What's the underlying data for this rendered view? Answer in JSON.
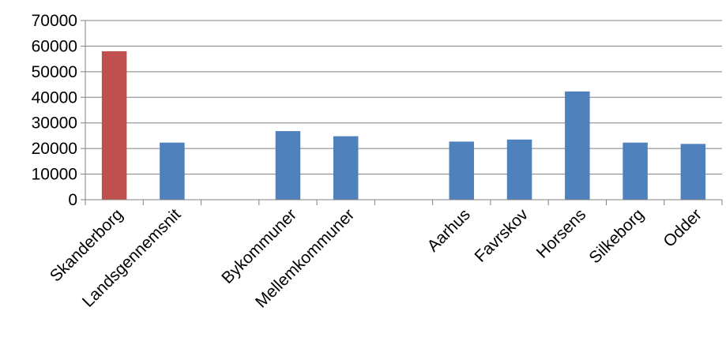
{
  "chart_data": {
    "type": "bar",
    "title": "",
    "xlabel": "",
    "ylabel": "",
    "ylim": [
      0,
      70000
    ],
    "yticks": [
      0,
      10000,
      20000,
      30000,
      40000,
      50000,
      60000,
      70000
    ],
    "grid": true,
    "legend": "none",
    "categories": [
      "Skanderborg",
      "Landsgennemsnit",
      "",
      "Bykommuner",
      "Mellemkommuner",
      "",
      "Aarhus",
      "Favrskov",
      "Horsens",
      "Silkeborg",
      "Odder"
    ],
    "values": [
      58000,
      22300,
      null,
      26800,
      24800,
      null,
      22700,
      23500,
      42300,
      22300,
      21800
    ],
    "colors": {
      "highlight": "#c0504d",
      "default": "#4f81bd",
      "grid": "#808080",
      "axis": "#808080"
    },
    "highlight_index": 0
  }
}
